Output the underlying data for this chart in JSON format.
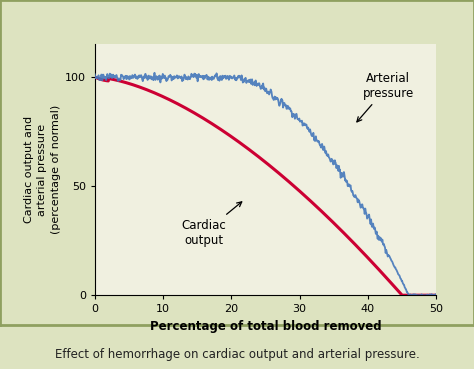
{
  "background_color": "#dde3c0",
  "plot_bg_color": "#f0f0e0",
  "outer_border_color": "#8fa060",
  "xlim": [
    0,
    50
  ],
  "ylim": [
    0,
    115
  ],
  "xticks": [
    0,
    10,
    20,
    30,
    40,
    50
  ],
  "yticks": [
    0,
    50,
    100
  ],
  "xlabel": "Percentage of total blood removed",
  "ylabel": "Cardiac output and\narterial pressure\n(percentage of normal)",
  "xlabel_fontsize": 8.5,
  "ylabel_fontsize": 8,
  "cardiac_output_color": "#cc0033",
  "arterial_pressure_color": "#4477bb",
  "annotation_cardiac": "Cardiac\noutput",
  "annotation_arterial": "Arterial\npressure",
  "caption": "Effect of hemorrhage on cardiac output and arterial pressure.",
  "caption_fontsize": 8.5
}
